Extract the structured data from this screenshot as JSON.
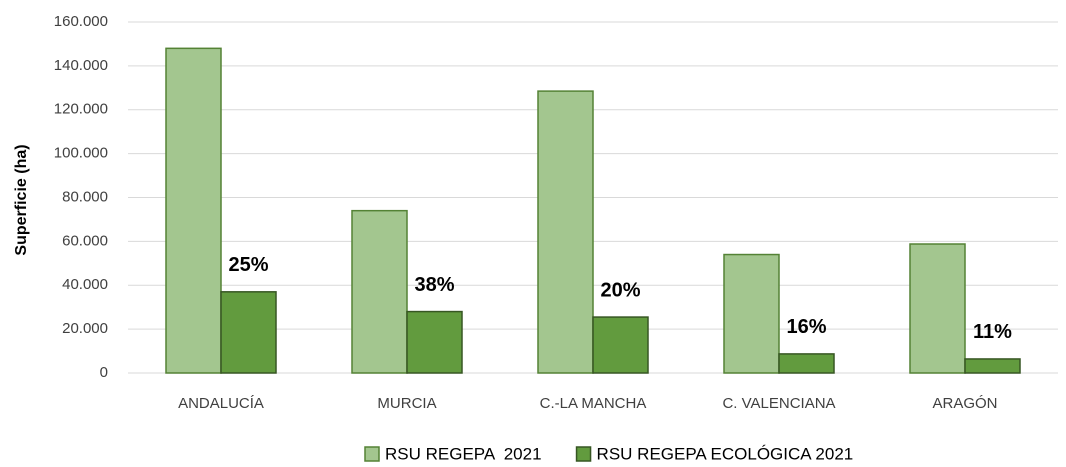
{
  "chart_data": {
    "type": "bar",
    "y_label": "Superficie (ha)",
    "categories": [
      "ANDALUCÍA",
      "MURCIA",
      "C.-LA MANCHA",
      "C. VALENCIANA",
      "ARAGÓN"
    ],
    "series": [
      {
        "name": "RSU REGEPA  2021",
        "color": "#a3c68f",
        "edge": "#548235",
        "values": [
          148000,
          74000,
          128500,
          54000,
          58800
        ]
      },
      {
        "name": "RSU REGEPA ECOLÓGICA 2021",
        "color": "#629b3e",
        "edge": "#375623",
        "values": [
          37000,
          28000,
          25500,
          8700,
          6400
        ]
      }
    ],
    "annotations": [
      "25%",
      "38%",
      "20%",
      "16%",
      "11%"
    ],
    "ylim": [
      0,
      160000
    ],
    "yticks": [
      0,
      {
        "value": 20000,
        "label": "20.000"
      },
      {
        "value": 40000,
        "label": "40.000"
      },
      {
        "value": 60000,
        "label": "60.000"
      },
      {
        "value": 80000,
        "label": "80.000"
      },
      {
        "value": 100000,
        "label": "100.000"
      },
      {
        "value": 120000,
        "label": "120.000"
      },
      {
        "value": 140000,
        "label": "140.000"
      },
      {
        "value": 160000,
        "label": "160.000"
      }
    ],
    "grid": true,
    "legend": "bottom"
  }
}
